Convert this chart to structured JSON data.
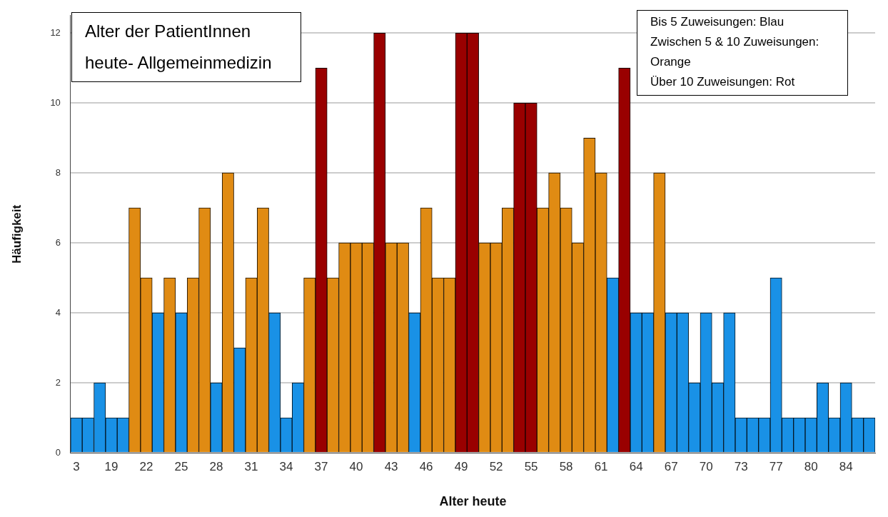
{
  "chart_data": {
    "type": "bar",
    "title": "Alter der PatientInnen heute- Allgemeinmedizin",
    "xlabel": "Alter heute",
    "ylabel": "Häufigkeit",
    "annotations": [
      "Bis 5 Zuweisungen: Blau",
      "Zwischen 5 & 10 Zuweisungen: Orange",
      "Über 10 Zuweisungen: Rot"
    ],
    "categories": [
      "3",
      null,
      null,
      "19",
      null,
      null,
      "22",
      null,
      null,
      "25",
      null,
      null,
      "28",
      null,
      null,
      "31",
      null,
      null,
      "34",
      null,
      null,
      "37",
      null,
      null,
      "40",
      null,
      null,
      "43",
      null,
      null,
      "46",
      null,
      null,
      "49",
      null,
      null,
      "52",
      null,
      null,
      "55",
      null,
      null,
      "58",
      null,
      null,
      "61",
      null,
      null,
      "64",
      null,
      null,
      "67",
      null,
      null,
      "70",
      null,
      null,
      "73",
      null,
      null,
      "77",
      null,
      null,
      "80",
      null,
      null,
      "84",
      null,
      null
    ],
    "values": [
      1,
      1,
      2,
      1,
      1,
      7,
      5,
      4,
      5,
      4,
      5,
      7,
      2,
      8,
      3,
      5,
      7,
      4,
      1,
      2,
      5,
      11,
      5,
      6,
      6,
      6,
      12,
      6,
      6,
      4,
      7,
      5,
      5,
      12,
      12,
      6,
      6,
      7,
      10,
      10,
      7,
      8,
      7,
      6,
      9,
      8,
      5,
      11,
      4,
      4,
      8,
      4,
      4,
      2,
      4,
      2,
      4,
      1,
      1,
      1,
      5,
      1,
      1,
      1,
      2,
      1,
      2,
      1,
      1
    ],
    "colors": [
      "#1991e6",
      "#1991e6",
      "#1991e6",
      "#1991e6",
      "#1991e6",
      "#e08b13",
      "#e08b13",
      "#1991e6",
      "#e08b13",
      "#1991e6",
      "#e08b13",
      "#e08b13",
      "#1991e6",
      "#e08b13",
      "#1991e6",
      "#e08b13",
      "#e08b13",
      "#1991e6",
      "#1991e6",
      "#1991e6",
      "#e08b13",
      "#990000",
      "#e08b13",
      "#e08b13",
      "#e08b13",
      "#e08b13",
      "#990000",
      "#e08b13",
      "#e08b13",
      "#1991e6",
      "#e08b13",
      "#e08b13",
      "#e08b13",
      "#990000",
      "#990000",
      "#e08b13",
      "#e08b13",
      "#e08b13",
      "#990000",
      "#990000",
      "#e08b13",
      "#e08b13",
      "#e08b13",
      "#e08b13",
      "#e08b13",
      "#e08b13",
      "#1991e6",
      "#990000",
      "#1991e6",
      "#1991e6",
      "#e08b13",
      "#1991e6",
      "#1991e6",
      "#1991e6",
      "#1991e6",
      "#1991e6",
      "#1991e6",
      "#1991e6",
      "#1991e6",
      "#1991e6",
      "#1991e6",
      "#1991e6",
      "#1991e6",
      "#1991e6",
      "#1991e6",
      "#1991e6",
      "#1991e6",
      "#1991e6",
      "#1991e6"
    ],
    "ylim": [
      0,
      12.5
    ],
    "yticks": [
      0,
      2,
      4,
      6,
      8,
      10,
      12
    ],
    "grid": "y",
    "legend": false
  }
}
